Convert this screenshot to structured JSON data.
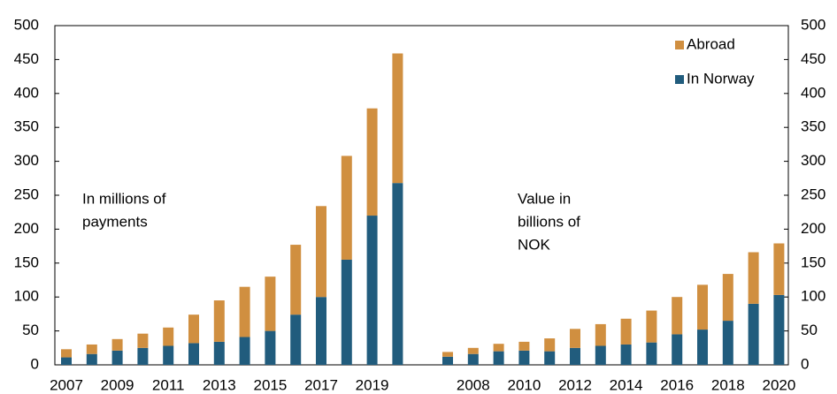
{
  "chart_data": [
    {
      "type": "bar",
      "stacked": true,
      "annotation": [
        "In millions of",
        "payments"
      ],
      "categories": [
        "2007",
        null,
        "2009",
        null,
        "2011",
        null,
        "2013",
        null,
        "2015",
        null,
        "2017",
        null,
        "2019",
        null
      ],
      "series": [
        {
          "name": "In Norway",
          "color": "#215c7d",
          "values": [
            11,
            16,
            21,
            25,
            28,
            32,
            34,
            41,
            50,
            74,
            100,
            155,
            220,
            268
          ]
        },
        {
          "name": "Abroad",
          "color": "#d08f40",
          "values": [
            12,
            14,
            17,
            21,
            27,
            42,
            61,
            74,
            80,
            103,
            134,
            153,
            158,
            191
          ]
        }
      ],
      "ylim": [
        0,
        500
      ],
      "yticks": [
        0,
        50,
        100,
        150,
        200,
        250,
        300,
        350,
        400,
        450,
        500
      ]
    },
    {
      "type": "bar",
      "stacked": true,
      "annotation": [
        "Value in",
        "billions of",
        "NOK"
      ],
      "categories": [
        null,
        "2008",
        null,
        "2010",
        null,
        "2012",
        null,
        "2014",
        null,
        "2016",
        null,
        "2018",
        null,
        "2020"
      ],
      "series": [
        {
          "name": "In Norway",
          "color": "#215c7d",
          "values": [
            12,
            16,
            20,
            21,
            20,
            25,
            28,
            30,
            33,
            45,
            52,
            65,
            90,
            103
          ]
        },
        {
          "name": "Abroad",
          "color": "#d08f40",
          "values": [
            7,
            9,
            11,
            13,
            19,
            28,
            32,
            38,
            47,
            55,
            66,
            69,
            76,
            76
          ]
        }
      ],
      "ylim": [
        0,
        500
      ],
      "yticks": [
        0,
        50,
        100,
        150,
        200,
        250,
        300,
        350,
        400,
        450,
        500
      ],
      "legend": "top-right"
    }
  ]
}
